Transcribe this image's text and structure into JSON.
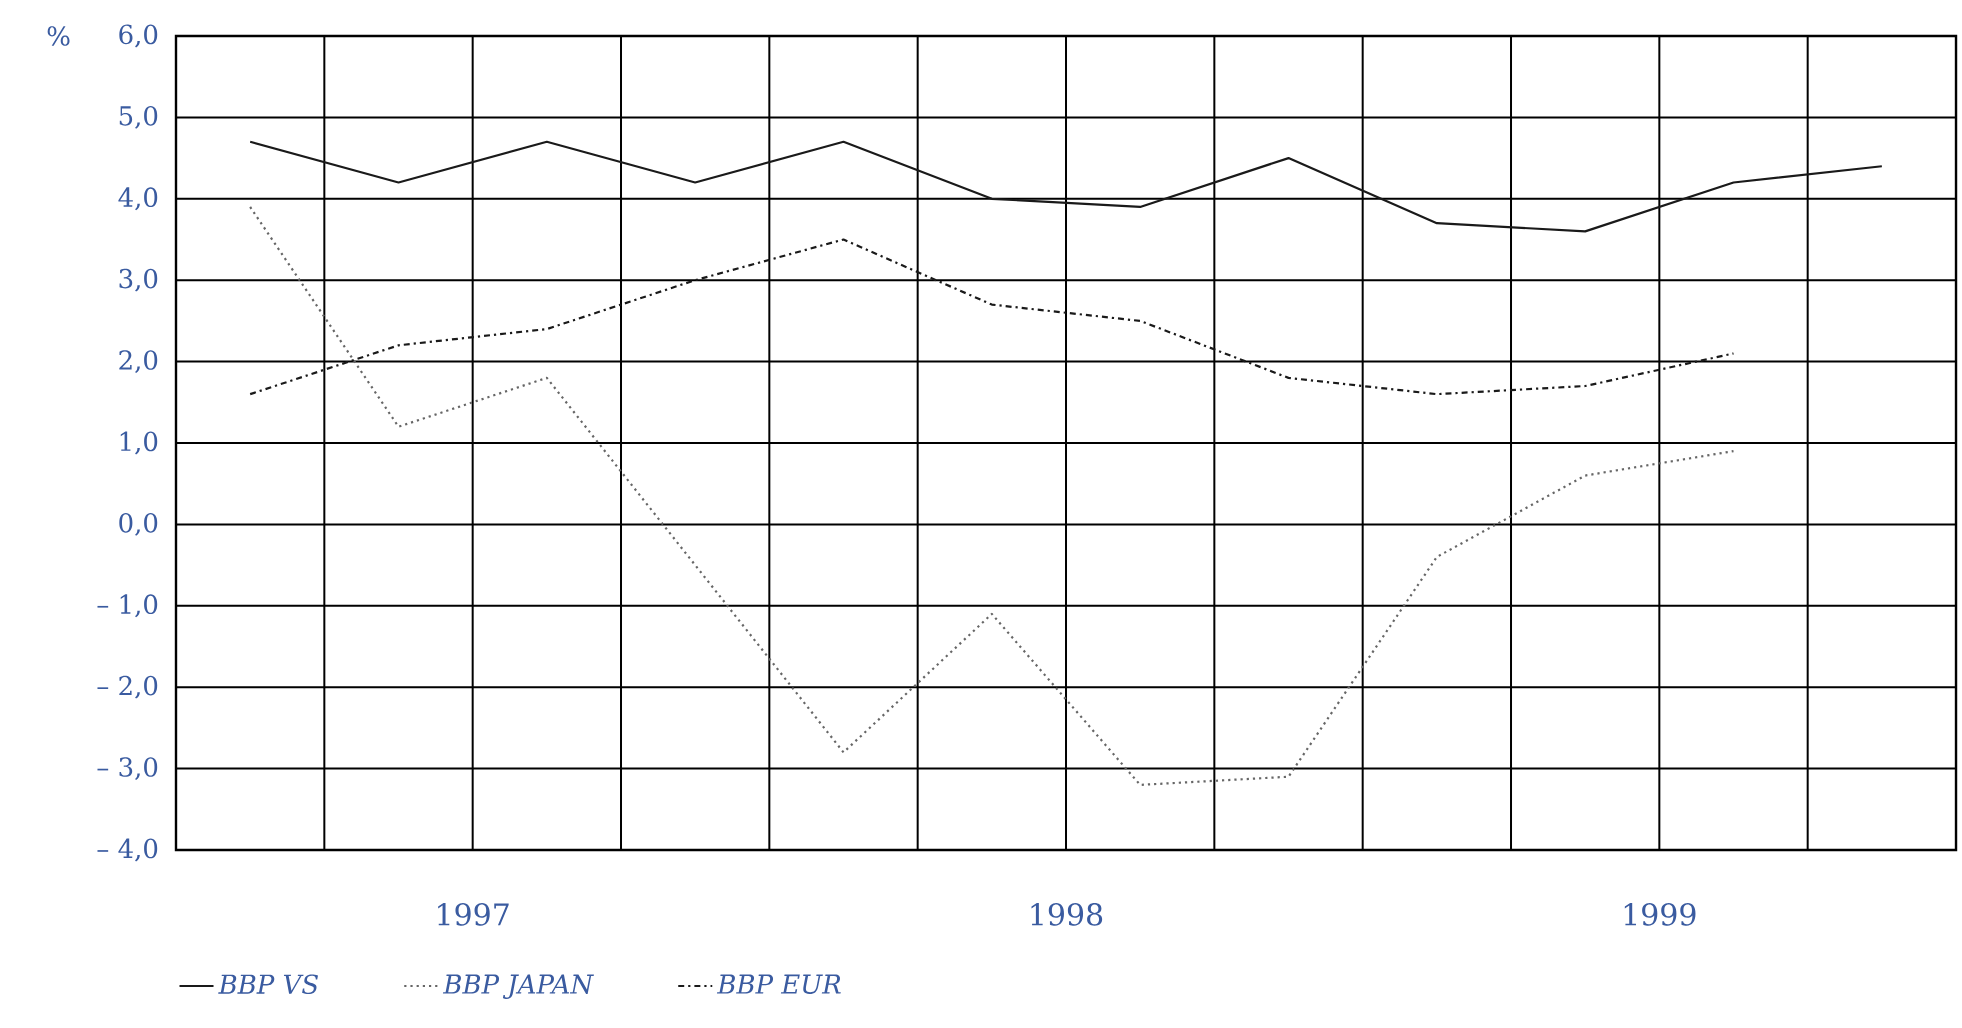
{
  "chart_data": {
    "type": "line",
    "ylabel": "%",
    "x": [
      1997.125,
      1997.375,
      1997.625,
      1997.875,
      1998.125,
      1998.375,
      1998.625,
      1998.875,
      1999.125,
      1999.375,
      1999.625,
      1999.875
    ],
    "xlim": [
      1997,
      2000
    ],
    "xticks": [
      {
        "value": 1997,
        "label": null
      },
      {
        "value": 1997.25,
        "label": null
      },
      {
        "value": 1997.5,
        "label": "1997"
      },
      {
        "value": 1997.75,
        "label": null
      },
      {
        "value": 1998,
        "label": null
      },
      {
        "value": 1998.25,
        "label": null
      },
      {
        "value": 1998.5,
        "label": "1998"
      },
      {
        "value": 1998.75,
        "label": null
      },
      {
        "value": 1999,
        "label": null
      },
      {
        "value": 1999.25,
        "label": null
      },
      {
        "value": 1999.5,
        "label": "1999"
      },
      {
        "value": 1999.75,
        "label": null
      },
      {
        "value": 2000,
        "label": null
      }
    ],
    "ylim": [
      -4,
      6
    ],
    "yticks": [
      {
        "value": -4,
        "label": "– 4,0"
      },
      {
        "value": -3,
        "label": "– 3,0"
      },
      {
        "value": -2,
        "label": "– 2,0"
      },
      {
        "value": -1,
        "label": "– 1,0"
      },
      {
        "value": 0,
        "label": "0,0"
      },
      {
        "value": 1,
        "label": "1,0"
      },
      {
        "value": 2,
        "label": "2,0"
      },
      {
        "value": 3,
        "label": "3,0"
      },
      {
        "value": 4,
        "label": "4,0"
      },
      {
        "value": 5,
        "label": "5,0"
      },
      {
        "value": 6,
        "label": "6,0"
      }
    ],
    "grid": true,
    "legend": "bottom",
    "marker": "none",
    "series": [
      {
        "name": "BBP VS",
        "color": "#1a1a1a",
        "line_style": "solid",
        "values": [
          4.7,
          4.2,
          4.7,
          4.2,
          4.7,
          4.0,
          3.9,
          4.5,
          3.7,
          3.6,
          4.2,
          4.4
        ]
      },
      {
        "name": "BBP JAPAN",
        "color": "#666666",
        "line_style": "dotted",
        "values": [
          3.9,
          1.2,
          1.8,
          -0.5,
          -2.8,
          -1.1,
          -3.2,
          -3.1,
          -0.4,
          0.6,
          0.9,
          null
        ]
      },
      {
        "name": "BBP EUR",
        "color": "#1a1a1a",
        "line_style": "dashdot",
        "values": [
          1.6,
          2.2,
          2.4,
          3.0,
          3.5,
          2.7,
          2.5,
          1.8,
          1.6,
          1.7,
          2.1,
          null
        ]
      }
    ]
  }
}
